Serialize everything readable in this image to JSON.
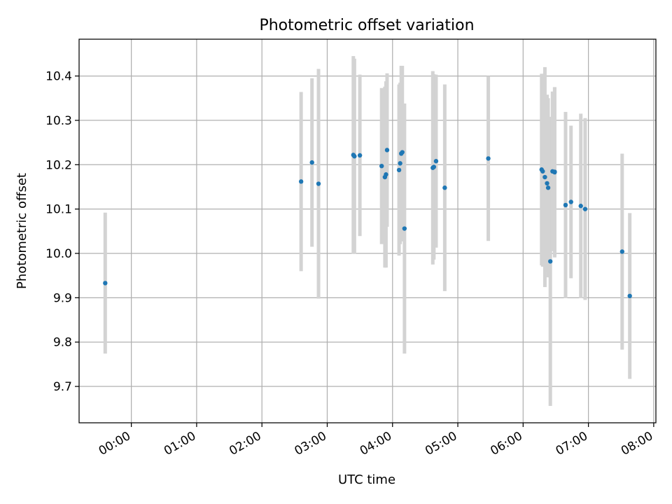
{
  "chart_data": {
    "type": "scatter",
    "title": "Photometric offset variation",
    "xlabel": "UTC time",
    "ylabel": "Photometric offset",
    "x_unit": "time of day (HH:MM)",
    "xlim": [
      "23:12",
      "08:02"
    ],
    "ylim": [
      9.618,
      10.483
    ],
    "grid": true,
    "x_ticks": [
      "00:00",
      "01:00",
      "02:00",
      "03:00",
      "04:00",
      "05:00",
      "06:00",
      "07:00",
      "08:00"
    ],
    "y_ticks": [
      "9.7",
      "9.8",
      "9.9",
      "10.0",
      "10.1",
      "10.2",
      "10.3",
      "10.4"
    ],
    "point_color": "#1f77b4",
    "errorbar_color": "#d3d3d3",
    "points": [
      {
        "x": "23:36",
        "y": 9.933,
        "err": 0.159
      },
      {
        "x": "02:36",
        "y": 10.162,
        "err": 0.202
      },
      {
        "x": "02:46",
        "y": 10.205,
        "err": 0.19
      },
      {
        "x": "02:52",
        "y": 10.157,
        "err": 0.259
      },
      {
        "x": "03:24",
        "y": 10.222,
        "err": 0.223
      },
      {
        "x": "03:25",
        "y": 10.219,
        "err": 0.22
      },
      {
        "x": "03:30",
        "y": 10.221,
        "err": 0.182
      },
      {
        "x": "03:50",
        "y": 10.197,
        "err": 0.176
      },
      {
        "x": "03:53",
        "y": 10.172,
        "err": 0.204
      },
      {
        "x": "03:54",
        "y": 10.178,
        "err": 0.21
      },
      {
        "x": "03:55",
        "y": 10.233,
        "err": 0.173
      },
      {
        "x": "04:06",
        "y": 10.188,
        "err": 0.193
      },
      {
        "x": "04:07",
        "y": 10.203,
        "err": 0.182
      },
      {
        "x": "04:08",
        "y": 10.225,
        "err": 0.198
      },
      {
        "x": "04:09",
        "y": 10.228,
        "err": 0.195
      },
      {
        "x": "04:11",
        "y": 10.056,
        "err": 0.282
      },
      {
        "x": "04:37",
        "y": 10.193,
        "err": 0.218
      },
      {
        "x": "04:38",
        "y": 10.195,
        "err": 0.209
      },
      {
        "x": "04:40",
        "y": 10.208,
        "err": 0.195
      },
      {
        "x": "04:48",
        "y": 10.148,
        "err": 0.233
      },
      {
        "x": "05:28",
        "y": 10.214,
        "err": 0.186
      },
      {
        "x": "06:17",
        "y": 10.189,
        "err": 0.216
      },
      {
        "x": "06:18",
        "y": 10.185,
        "err": 0.215
      },
      {
        "x": "06:20",
        "y": 10.172,
        "err": 0.248
      },
      {
        "x": "06:22",
        "y": 10.158,
        "err": 0.2
      },
      {
        "x": "06:23",
        "y": 10.148,
        "err": 0.202
      },
      {
        "x": "06:25",
        "y": 9.982,
        "err": 0.326
      },
      {
        "x": "06:27",
        "y": 10.185,
        "err": 0.18
      },
      {
        "x": "06:29",
        "y": 10.183,
        "err": 0.192
      },
      {
        "x": "06:29",
        "y": 10.184,
        "err": 0.19
      },
      {
        "x": "06:39",
        "y": 10.109,
        "err": 0.21
      },
      {
        "x": "06:44",
        "y": 10.116,
        "err": 0.172
      },
      {
        "x": "06:53",
        "y": 10.107,
        "err": 0.208
      },
      {
        "x": "06:57",
        "y": 10.1,
        "err": 0.205
      },
      {
        "x": "07:31",
        "y": 10.004,
        "err": 0.221
      },
      {
        "x": "07:38",
        "y": 9.904,
        "err": 0.187
      }
    ]
  }
}
